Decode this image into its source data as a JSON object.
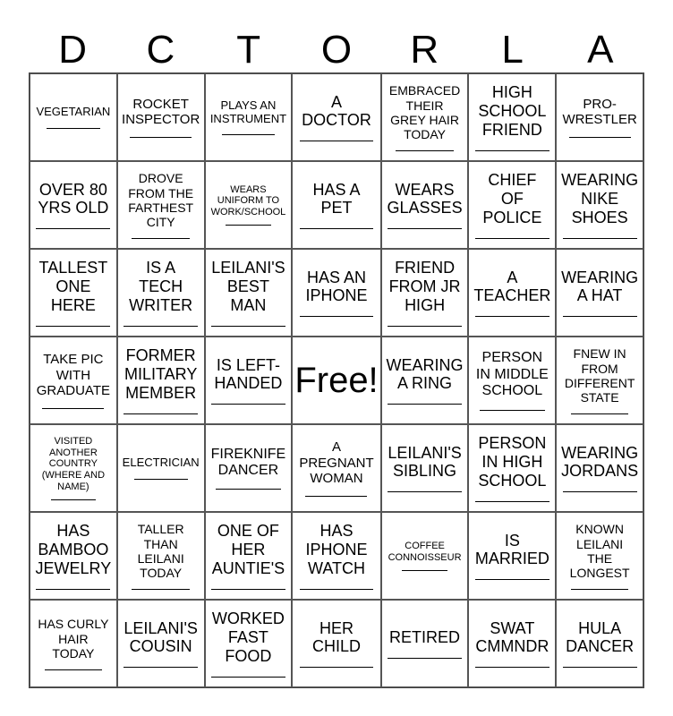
{
  "header": {
    "letters": [
      "D",
      "C",
      "T",
      "O",
      "R",
      "L",
      "A"
    ]
  },
  "cells": [
    {
      "text": "VEGETARIAN",
      "size": 13,
      "blank": true
    },
    {
      "text": "ROCKET\nINSPECTOR",
      "size": 15,
      "blank": true
    },
    {
      "text": "PLAYS AN\nINSTRUMENT",
      "size": 13,
      "blank": true
    },
    {
      "text": "A\nDOCTOR",
      "size": 18,
      "blank": true
    },
    {
      "text": "EMBRACED\nTHEIR\nGREY HAIR\nTODAY",
      "size": 14,
      "blank": true
    },
    {
      "text": "HIGH\nSCHOOL\nFRIEND",
      "size": 18,
      "blank": true
    },
    {
      "text": "PRO-\nWRESTLER",
      "size": 15,
      "blank": true
    },
    {
      "text": "OVER 80\nYRS OLD",
      "size": 18,
      "blank": true
    },
    {
      "text": "DROVE\nFROM THE\nFARTHEST\nCITY",
      "size": 14,
      "blank": true
    },
    {
      "text": "WEARS\nUNIFORM TO\nWORK/SCHOOL",
      "size": 11,
      "blank": true
    },
    {
      "text": "HAS A\nPET",
      "size": 18,
      "blank": true
    },
    {
      "text": "WEARS\nGLASSES",
      "size": 18,
      "blank": true
    },
    {
      "text": "CHIEF\nOF\nPOLICE",
      "size": 18,
      "blank": true
    },
    {
      "text": "WEARING\nNIKE\nSHOES",
      "size": 18,
      "blank": true
    },
    {
      "text": "TALLEST\nONE\nHERE",
      "size": 18,
      "blank": true
    },
    {
      "text": "IS A\nTECH\nWRITER",
      "size": 18,
      "blank": true
    },
    {
      "text": "LEILANI'S\nBEST\nMAN",
      "size": 18,
      "blank": true
    },
    {
      "text": "HAS AN\nIPHONE",
      "size": 18,
      "blank": true
    },
    {
      "text": "FRIEND\nFROM JR\nHIGH",
      "size": 18,
      "blank": true
    },
    {
      "text": "A\nTEACHER",
      "size": 18,
      "blank": true
    },
    {
      "text": "WEARING\nA HAT",
      "size": 18,
      "blank": true
    },
    {
      "text": "TAKE PIC\nWITH\nGRADUATE",
      "size": 15,
      "blank": true
    },
    {
      "text": "FORMER\nMILITARY\nMEMBER",
      "size": 18,
      "blank": true
    },
    {
      "text": "IS LEFT-\nHANDED",
      "size": 18,
      "blank": true
    },
    {
      "text": "Free!",
      "size": 40,
      "blank": false,
      "free": true
    },
    {
      "text": "WEARING\nA RING",
      "size": 18,
      "blank": true
    },
    {
      "text": "PERSON\nIN MIDDLE\nSCHOOL",
      "size": 16,
      "blank": true
    },
    {
      "text": "FNEW IN\nFROM\nDIFFERENT\nSTATE",
      "size": 14,
      "blank": true
    },
    {
      "text": "VISITED\nANOTHER\nCOUNTRY\n(WHERE AND\nNAME)",
      "size": 11,
      "blank": true
    },
    {
      "text": "ELECTRICIAN",
      "size": 13,
      "blank": true
    },
    {
      "text": "FIREKNIFE\nDANCER",
      "size": 16,
      "blank": true
    },
    {
      "text": "A\nPREGNANT\nWOMAN",
      "size": 15,
      "blank": true
    },
    {
      "text": "LEILANI'S\nSIBLING",
      "size": 18,
      "blank": true
    },
    {
      "text": "PERSON\nIN HIGH\nSCHOOL",
      "size": 18,
      "blank": true
    },
    {
      "text": "WEARING\nJORDANS",
      "size": 18,
      "blank": true
    },
    {
      "text": "HAS\nBAMBOO\nJEWELRY",
      "size": 18,
      "blank": true
    },
    {
      "text": "TALLER\nTHAN\nLEILANI\nTODAY",
      "size": 14,
      "blank": true
    },
    {
      "text": "ONE OF\nHER\nAUNTIE'S",
      "size": 18,
      "blank": true
    },
    {
      "text": "HAS\nIPHONE\nWATCH",
      "size": 18,
      "blank": true
    },
    {
      "text": "COFFEE\nCONNOISSEUR",
      "size": 11,
      "blank": true
    },
    {
      "text": "IS\nMARRIED",
      "size": 18,
      "blank": true
    },
    {
      "text": "KNOWN\nLEILANI\nTHE\nLONGEST",
      "size": 14,
      "blank": true
    },
    {
      "text": "HAS CURLY\nHAIR\nTODAY",
      "size": 14,
      "blank": true
    },
    {
      "text": "LEILANI'S\nCOUSIN",
      "size": 18,
      "blank": true
    },
    {
      "text": "WORKED\nFAST\nFOOD",
      "size": 18,
      "blank": true
    },
    {
      "text": "HER\nCHILD",
      "size": 18,
      "blank": true
    },
    {
      "text": "RETIRED",
      "size": 18,
      "blank": true
    },
    {
      "text": "SWAT\nCMMNDR",
      "size": 18,
      "blank": true
    },
    {
      "text": "HULA\nDANCER",
      "size": 18,
      "blank": true
    }
  ]
}
